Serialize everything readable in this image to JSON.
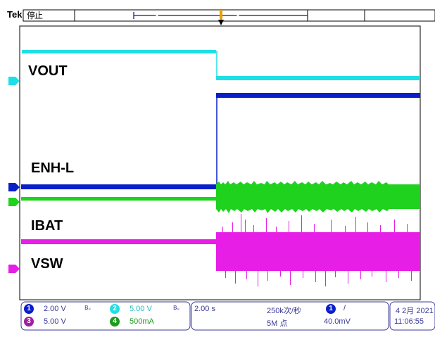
{
  "header": {
    "brand": "Tek",
    "run_state": "停止"
  },
  "traces": {
    "vout": "VOUT",
    "enh": "ENH-L",
    "ibat": "IBAT",
    "vsw": "VSW"
  },
  "channel_markers": {
    "ch1": "1",
    "ch2": "2",
    "ch3": "3",
    "ch4": "4"
  },
  "statusbar": {
    "ch1_num": "1",
    "ch1_scale": "2.00 V",
    "ch2_num": "2",
    "ch2_scale": "5.00 V",
    "ch3_num": "3",
    "ch3_scale": "5.00 V",
    "ch4_num": "4",
    "ch4_scale": "500mA",
    "bw_icon": "Bᵤ",
    "timebase": "2.00 s",
    "sample_rate": "250k次/秒",
    "record_length": "5M 点",
    "trigger_channel": "1",
    "trigger_slope": "/",
    "trigger_level": "40.0mV",
    "date": "4 2月 2021",
    "time": "11:06:55"
  },
  "colors": {
    "ch1": "#0a1fc8",
    "ch2": "#1edfe6",
    "ch3": "#e61ee6",
    "ch4": "#1ed21e",
    "accent": "#3a3a9a"
  }
}
